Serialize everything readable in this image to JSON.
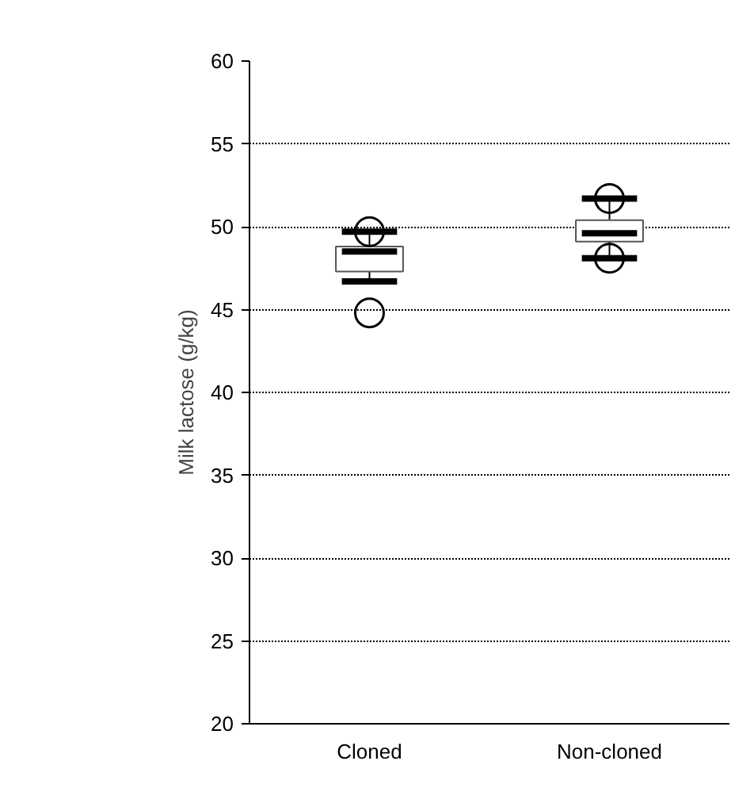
{
  "chart_data": {
    "type": "box",
    "ylabel": "Milk lactose (g/kg)",
    "categories": [
      "Cloned",
      "Non-cloned"
    ],
    "boxes": [
      {
        "low": 46.7,
        "q1": 47.3,
        "median": 48.5,
        "q3": 48.8,
        "high": 49.7,
        "outliers": [
          49.7,
          44.8
        ]
      },
      {
        "low": 48.1,
        "q1": 49.1,
        "median": 49.6,
        "q3": 50.4,
        "high": 51.7,
        "outliers": [
          51.7,
          48.1
        ]
      }
    ],
    "ylim": [
      20,
      60
    ],
    "yticks": [
      20,
      25,
      30,
      35,
      40,
      45,
      50,
      55,
      60
    ],
    "grid": "y"
  }
}
